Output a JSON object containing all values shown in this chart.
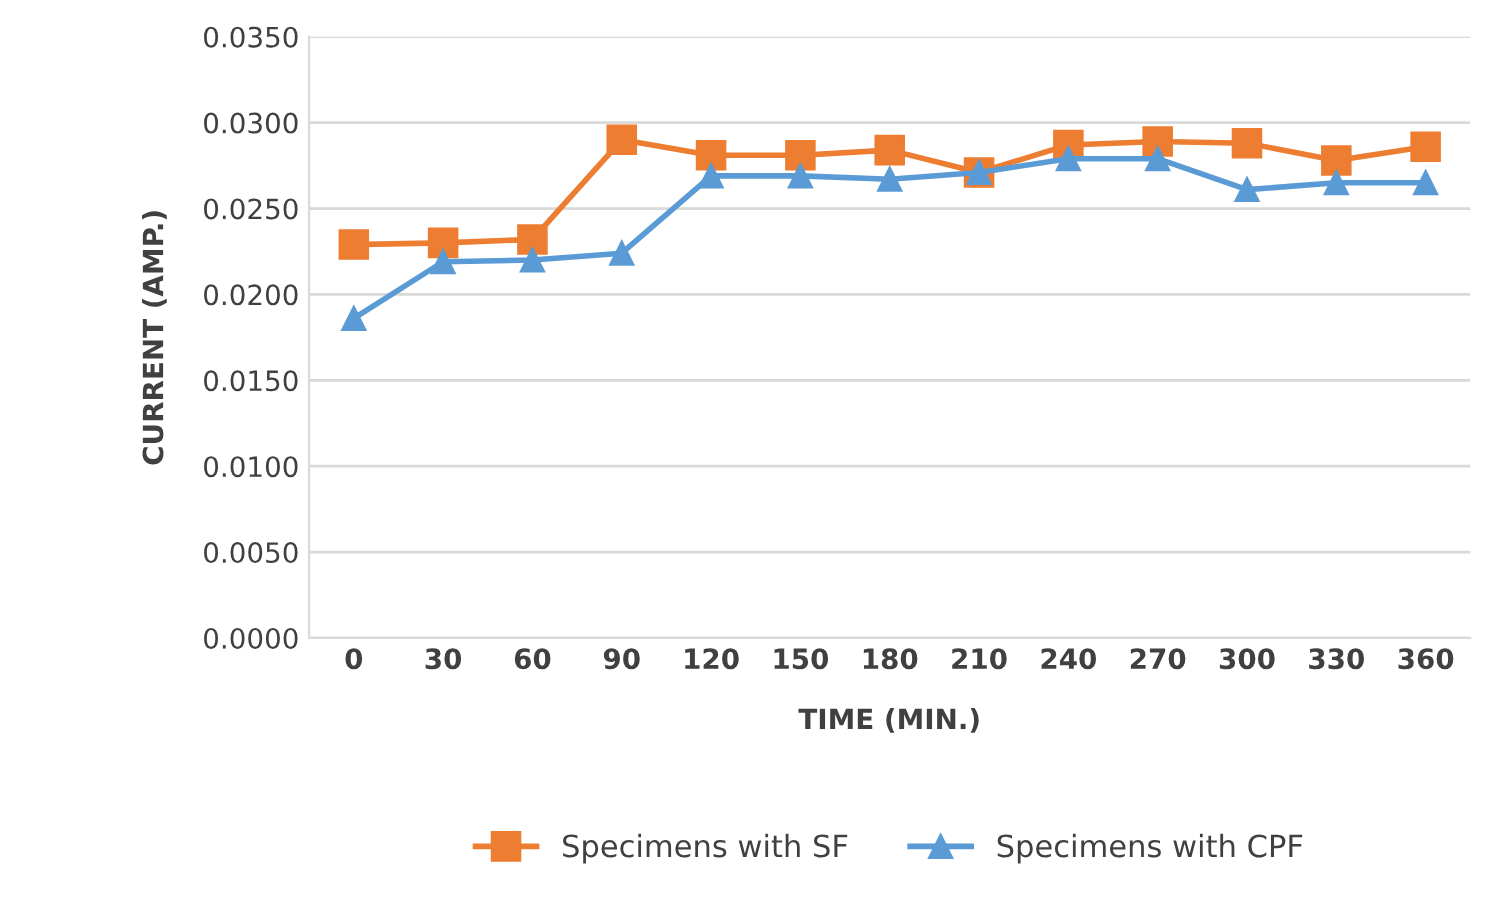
{
  "chart_data": {
    "type": "line",
    "xlabel": "TIME (MIN.)",
    "ylabel": "CURRENT (AMP.)",
    "categories": [
      "0",
      "30",
      "60",
      "90",
      "120",
      "150",
      "180",
      "210",
      "240",
      "270",
      "300",
      "330",
      "360"
    ],
    "series": [
      {
        "name": "Specimens with SF",
        "color": "#ed7d31",
        "marker": "square",
        "values": [
          0.0229,
          0.023,
          0.0232,
          0.029,
          0.0281,
          0.0281,
          0.0284,
          0.0271,
          0.0287,
          0.0289,
          0.0288,
          0.0278,
          0.0286
        ]
      },
      {
        "name": "Specimens with CPF",
        "color": "#5b9bd5",
        "marker": "triangle",
        "values": [
          0.0186,
          0.0219,
          0.022,
          0.0224,
          0.0269,
          0.0269,
          0.0267,
          0.0271,
          0.0279,
          0.0279,
          0.0261,
          0.0265,
          0.0265
        ]
      }
    ],
    "ylim": [
      0,
      0.035
    ],
    "yticks": [
      {
        "value": 0,
        "label": "0.0000"
      },
      {
        "value": 0.005,
        "label": "0.0050"
      },
      {
        "value": 0.01,
        "label": "0.0100"
      },
      {
        "value": 0.015,
        "label": "0.0150"
      },
      {
        "value": 0.02,
        "label": "0.0200"
      },
      {
        "value": 0.025,
        "label": "0.0250"
      },
      {
        "value": 0.03,
        "label": "0.0300"
      },
      {
        "value": 0.035,
        "label": "0.0350"
      }
    ],
    "grid": "y",
    "legend": "bottom"
  }
}
